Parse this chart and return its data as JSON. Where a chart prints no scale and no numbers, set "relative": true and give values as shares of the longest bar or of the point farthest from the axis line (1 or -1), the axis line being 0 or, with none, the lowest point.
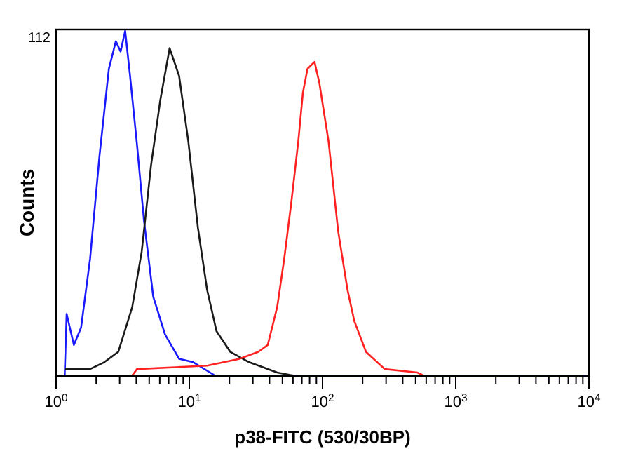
{
  "chart_data": {
    "type": "line",
    "xlabel": "p38-FITC (530/30BP)",
    "ylabel": "Counts",
    "log": "x",
    "relative": true,
    "marker": "none",
    "line_style": "solid",
    "grid": false,
    "xlim": [
      1,
      10000
    ],
    "xticks": [
      {
        "value": 1,
        "label": "10$^{0}$"
      },
      {
        "value": 2,
        "label": null
      },
      {
        "value": 3,
        "label": null
      },
      {
        "value": 4,
        "label": null
      },
      {
        "value": 5,
        "label": null
      },
      {
        "value": 6,
        "label": null
      },
      {
        "value": 7,
        "label": null
      },
      {
        "value": 8,
        "label": null
      },
      {
        "value": 9,
        "label": null
      },
      {
        "value": 10,
        "label": "10$^{1}$"
      },
      {
        "value": 20,
        "label": null
      },
      {
        "value": 30,
        "label": null
      },
      {
        "value": 40,
        "label": null
      },
      {
        "value": 50,
        "label": null
      },
      {
        "value": 60,
        "label": null
      },
      {
        "value": 70,
        "label": null
      },
      {
        "value": 80,
        "label": null
      },
      {
        "value": 90,
        "label": null
      },
      {
        "value": 100,
        "label": "10$^{2}$"
      },
      {
        "value": 200,
        "label": null
      },
      {
        "value": 300,
        "label": null
      },
      {
        "value": 400,
        "label": null
      },
      {
        "value": 500,
        "label": null
      },
      {
        "value": 600,
        "label": null
      },
      {
        "value": 700,
        "label": null
      },
      {
        "value": 800,
        "label": null
      },
      {
        "value": 900,
        "label": null
      },
      {
        "value": 1000,
        "label": "10$^{3}$"
      },
      {
        "value": 2000,
        "label": null
      },
      {
        "value": 3000,
        "label": null
      },
      {
        "value": 4000,
        "label": null
      },
      {
        "value": 5000,
        "label": null
      },
      {
        "value": 6000,
        "label": null
      },
      {
        "value": 7000,
        "label": null
      },
      {
        "value": 8000,
        "label": null
      },
      {
        "value": 9000,
        "label": null
      },
      {
        "value": 10000,
        "label": "10$^{4}$"
      }
    ],
    "annotations": [
      "112"
    ],
    "series": [
      {
        "color": "#1a1aff",
        "x": [
          1.16,
          1.2,
          1.36,
          1.54,
          1.8,
          2.12,
          2.49,
          2.81,
          3.05,
          3.3,
          3.59,
          4.05,
          4.57,
          5.36,
          6.58,
          8.38,
          10.7,
          15.8,
          9500
        ],
        "values": [
          0,
          0.18,
          0.09,
          0.14,
          0.34,
          0.64,
          0.89,
          0.97,
          0.94,
          1,
          0.87,
          0.67,
          0.45,
          0.23,
          0.12,
          0.05,
          0.04,
          0,
          0
        ]
      },
      {
        "color": "#1a1a1a",
        "x": [
          1.16,
          1.8,
          2.3,
          2.93,
          3.73,
          4.39,
          5.16,
          6.06,
          7.12,
          8.38,
          9.83,
          11.6,
          13.6,
          16,
          20.3,
          28.1,
          45.7,
          63
        ],
        "values": [
          0.02,
          0.02,
          0.04,
          0.07,
          0.2,
          0.36,
          0.61,
          0.8,
          0.95,
          0.87,
          0.68,
          0.43,
          0.25,
          0.13,
          0.07,
          0.04,
          0.01,
          0
        ]
      },
      {
        "color": "#ff2020",
        "x": [
          3.7,
          4.05,
          13.6,
          23.9,
          33,
          38.8,
          45.7,
          51.6,
          58.2,
          65.8,
          71.2,
          77.1,
          87.1,
          94.6,
          111,
          131,
          154,
          173,
          212,
          293,
          516,
          583
        ],
        "values": [
          0,
          0.02,
          0.03,
          0.05,
          0.07,
          0.09,
          0.2,
          0.34,
          0.5,
          0.68,
          0.82,
          0.89,
          0.91,
          0.85,
          0.68,
          0.42,
          0.25,
          0.16,
          0.07,
          0.02,
          0.01,
          0
        ]
      }
    ]
  }
}
